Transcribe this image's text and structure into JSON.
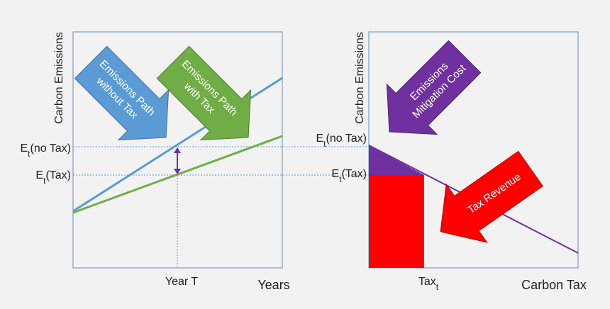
{
  "left_panel": {
    "y_axis_label": "Carbon Emissions",
    "x_axis_label": "Years",
    "x_marker_label": "Year T",
    "level_labels": [
      {
        "base": "E",
        "sub": "t",
        "rest": "(no Tax)"
      },
      {
        "base": "E",
        "sub": "t",
        "rest": "(Tax)"
      }
    ],
    "arrows": [
      {
        "lines": [
          "Emissions Path",
          "without Tax"
        ]
      },
      {
        "lines": [
          "Emissions Path",
          "with Tax"
        ]
      }
    ]
  },
  "right_panel": {
    "y_axis_label": "Carbon Emissions",
    "x_axis_label": "Carbon Tax",
    "x_marker_label": {
      "base": "Tax",
      "sub": "t"
    },
    "level_labels": [
      {
        "base": "E",
        "sub": "t",
        "rest": "(no Tax)"
      },
      {
        "base": "E",
        "sub": "t",
        "rest": "(Tax)"
      }
    ],
    "arrows": [
      {
        "lines": [
          "Emissions",
          "Mitigation Cost"
        ]
      },
      {
        "lines": [
          "Tax Revenue"
        ]
      }
    ]
  }
}
